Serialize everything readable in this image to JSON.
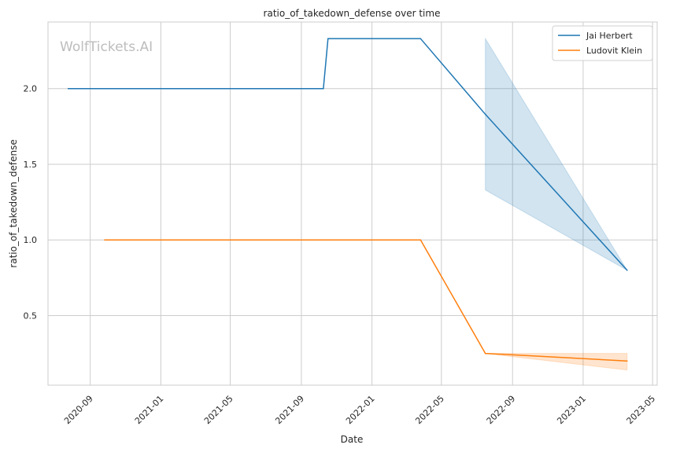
{
  "chart_data": {
    "type": "line",
    "title": "ratio_of_takedown_defense over time",
    "xlabel": "Date",
    "ylabel": "ratio_of_takedown_defense",
    "watermark": "WolfTickets.AI",
    "xlim": [
      "2020-06-20",
      "2023-05-09"
    ],
    "ylim": [
      0.04,
      2.44
    ],
    "x_ticks": [
      "2020-09",
      "2021-01",
      "2021-05",
      "2021-09",
      "2022-01",
      "2022-05",
      "2022-09",
      "2023-01",
      "2023-05"
    ],
    "y_ticks": [
      "0.5",
      "1.0",
      "1.5",
      "2.0"
    ],
    "grid": true,
    "legend_position": "top-right",
    "series": [
      {
        "name": "Jai Herbert",
        "color": "#1f77b4",
        "points": [
          {
            "x": "2020-07-25",
            "y": 2.0
          },
          {
            "x": "2021-10-09",
            "y": 2.0
          },
          {
            "x": "2021-10-17",
            "y": 2.33
          },
          {
            "x": "2022-03-26",
            "y": 2.33
          },
          {
            "x": "2022-07-16",
            "y": 1.83
          },
          {
            "x": "2023-03-18",
            "y": 0.8
          }
        ],
        "band": [
          {
            "x": "2022-07-16",
            "low": 1.33,
            "high": 2.33
          },
          {
            "x": "2023-03-18",
            "low": 0.8,
            "high": 0.8
          }
        ]
      },
      {
        "name": "Ludovit Klein",
        "color": "#ff7f0e",
        "points": [
          {
            "x": "2020-09-26",
            "y": 1.0
          },
          {
            "x": "2022-03-26",
            "y": 1.0
          },
          {
            "x": "2022-07-16",
            "y": 0.25
          },
          {
            "x": "2023-03-18",
            "y": 0.2
          }
        ],
        "band": [
          {
            "x": "2022-07-16",
            "low": 0.25,
            "high": 0.25
          },
          {
            "x": "2023-03-18",
            "low": 0.14,
            "high": 0.25
          }
        ]
      }
    ]
  }
}
